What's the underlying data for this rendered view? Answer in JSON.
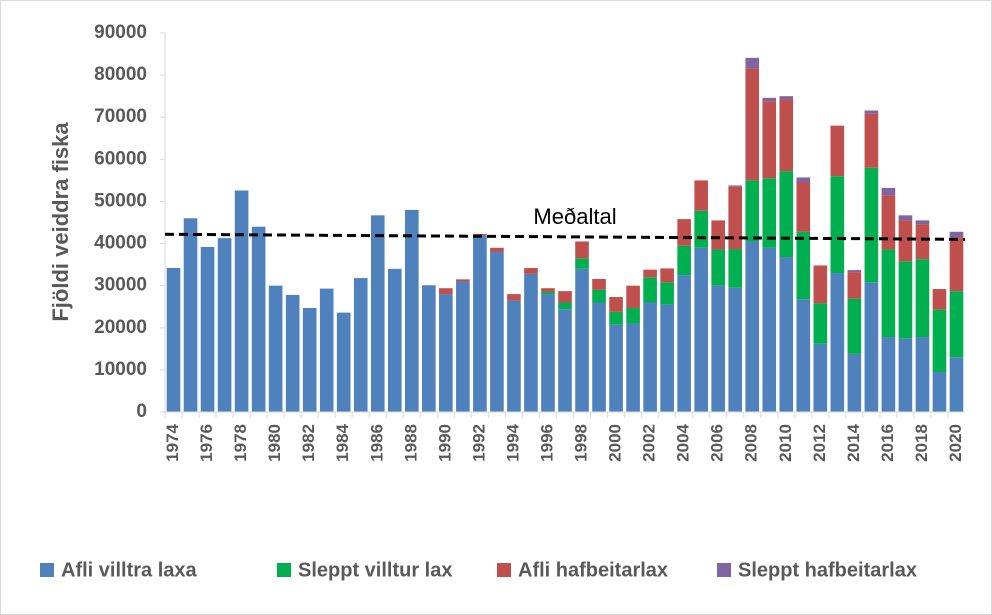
{
  "chart_data": {
    "type": "stacked_bar",
    "y_label": "Fjöldi veiddra fiska",
    "categories": [
      "1974",
      null,
      "1976",
      null,
      "1978",
      null,
      "1980",
      null,
      "1982",
      null,
      "1984",
      null,
      "1986",
      null,
      "1988",
      null,
      "1990",
      null,
      "1992",
      null,
      "1994",
      null,
      "1996",
      null,
      "1998",
      null,
      "2000",
      null,
      "2002",
      null,
      "2004",
      null,
      "2006",
      null,
      "2008",
      null,
      "2010",
      null,
      "2012",
      null,
      "2014",
      null,
      "2016",
      null,
      "2018",
      null,
      "2020"
    ],
    "series": [
      {
        "name": "Afli villtra laxa",
        "color": "#4f81bd",
        "values": [
          34200,
          46000,
          39200,
          41300,
          52600,
          44000,
          30000,
          27800,
          24700,
          29300,
          23600,
          31800,
          46700,
          34000,
          48000,
          30100,
          28000,
          31000,
          42000,
          38000,
          26500,
          32800,
          28000,
          24400,
          34000,
          26000,
          20700,
          21000,
          26000,
          25500,
          32500,
          39000,
          30000,
          29500,
          40500,
          39000,
          36800,
          26800,
          16200,
          33000,
          13800,
          30800,
          17800,
          17500,
          17800,
          9500,
          13000
        ]
      },
      {
        "name": "Sleppt villtur lax",
        "color": "#00b050",
        "values": [
          0,
          0,
          0,
          0,
          0,
          0,
          0,
          0,
          0,
          0,
          0,
          0,
          0,
          0,
          0,
          0,
          0,
          0,
          0,
          0,
          0,
          0,
          500,
          1600,
          2500,
          3000,
          3100,
          3700,
          6000,
          5300,
          7000,
          8800,
          8600,
          9200,
          14500,
          16500,
          20400,
          16000,
          9600,
          23000,
          13100,
          27200,
          20800,
          18300,
          18500,
          14800,
          15700
        ]
      },
      {
        "name": "Afli hafbeitarlax",
        "color": "#c0504d",
        "values": [
          0,
          0,
          0,
          0,
          0,
          0,
          0,
          0,
          0,
          0,
          0,
          0,
          0,
          0,
          0,
          0,
          1400,
          500,
          300,
          1000,
          1500,
          1400,
          900,
          2700,
          4000,
          2600,
          3500,
          5300,
          1800,
          3300,
          6300,
          7200,
          6900,
          14800,
          26600,
          18300,
          17000,
          11700,
          9000,
          12000,
          6300,
          12800,
          12900,
          9700,
          8300,
          4900,
          12800
        ]
      },
      {
        "name": "Sleppt hafbeitarlax",
        "color": "#8064a2",
        "values": [
          0,
          0,
          0,
          0,
          0,
          0,
          0,
          0,
          0,
          0,
          0,
          0,
          0,
          0,
          0,
          0,
          0,
          0,
          0,
          0,
          0,
          0,
          0,
          0,
          0,
          0,
          0,
          0,
          0,
          0,
          0,
          0,
          0,
          300,
          2500,
          800,
          800,
          1200,
          0,
          0,
          500,
          800,
          1700,
          1200,
          900,
          0,
          1300
        ]
      }
    ],
    "mean_line": {
      "label": "Meðaltal",
      "start": 42200,
      "end": 41000
    },
    "ylim": [
      0,
      90000
    ],
    "yticks": [
      0,
      10000,
      20000,
      30000,
      40000,
      50000,
      60000,
      70000,
      80000,
      90000
    ],
    "legend": "bottom"
  }
}
